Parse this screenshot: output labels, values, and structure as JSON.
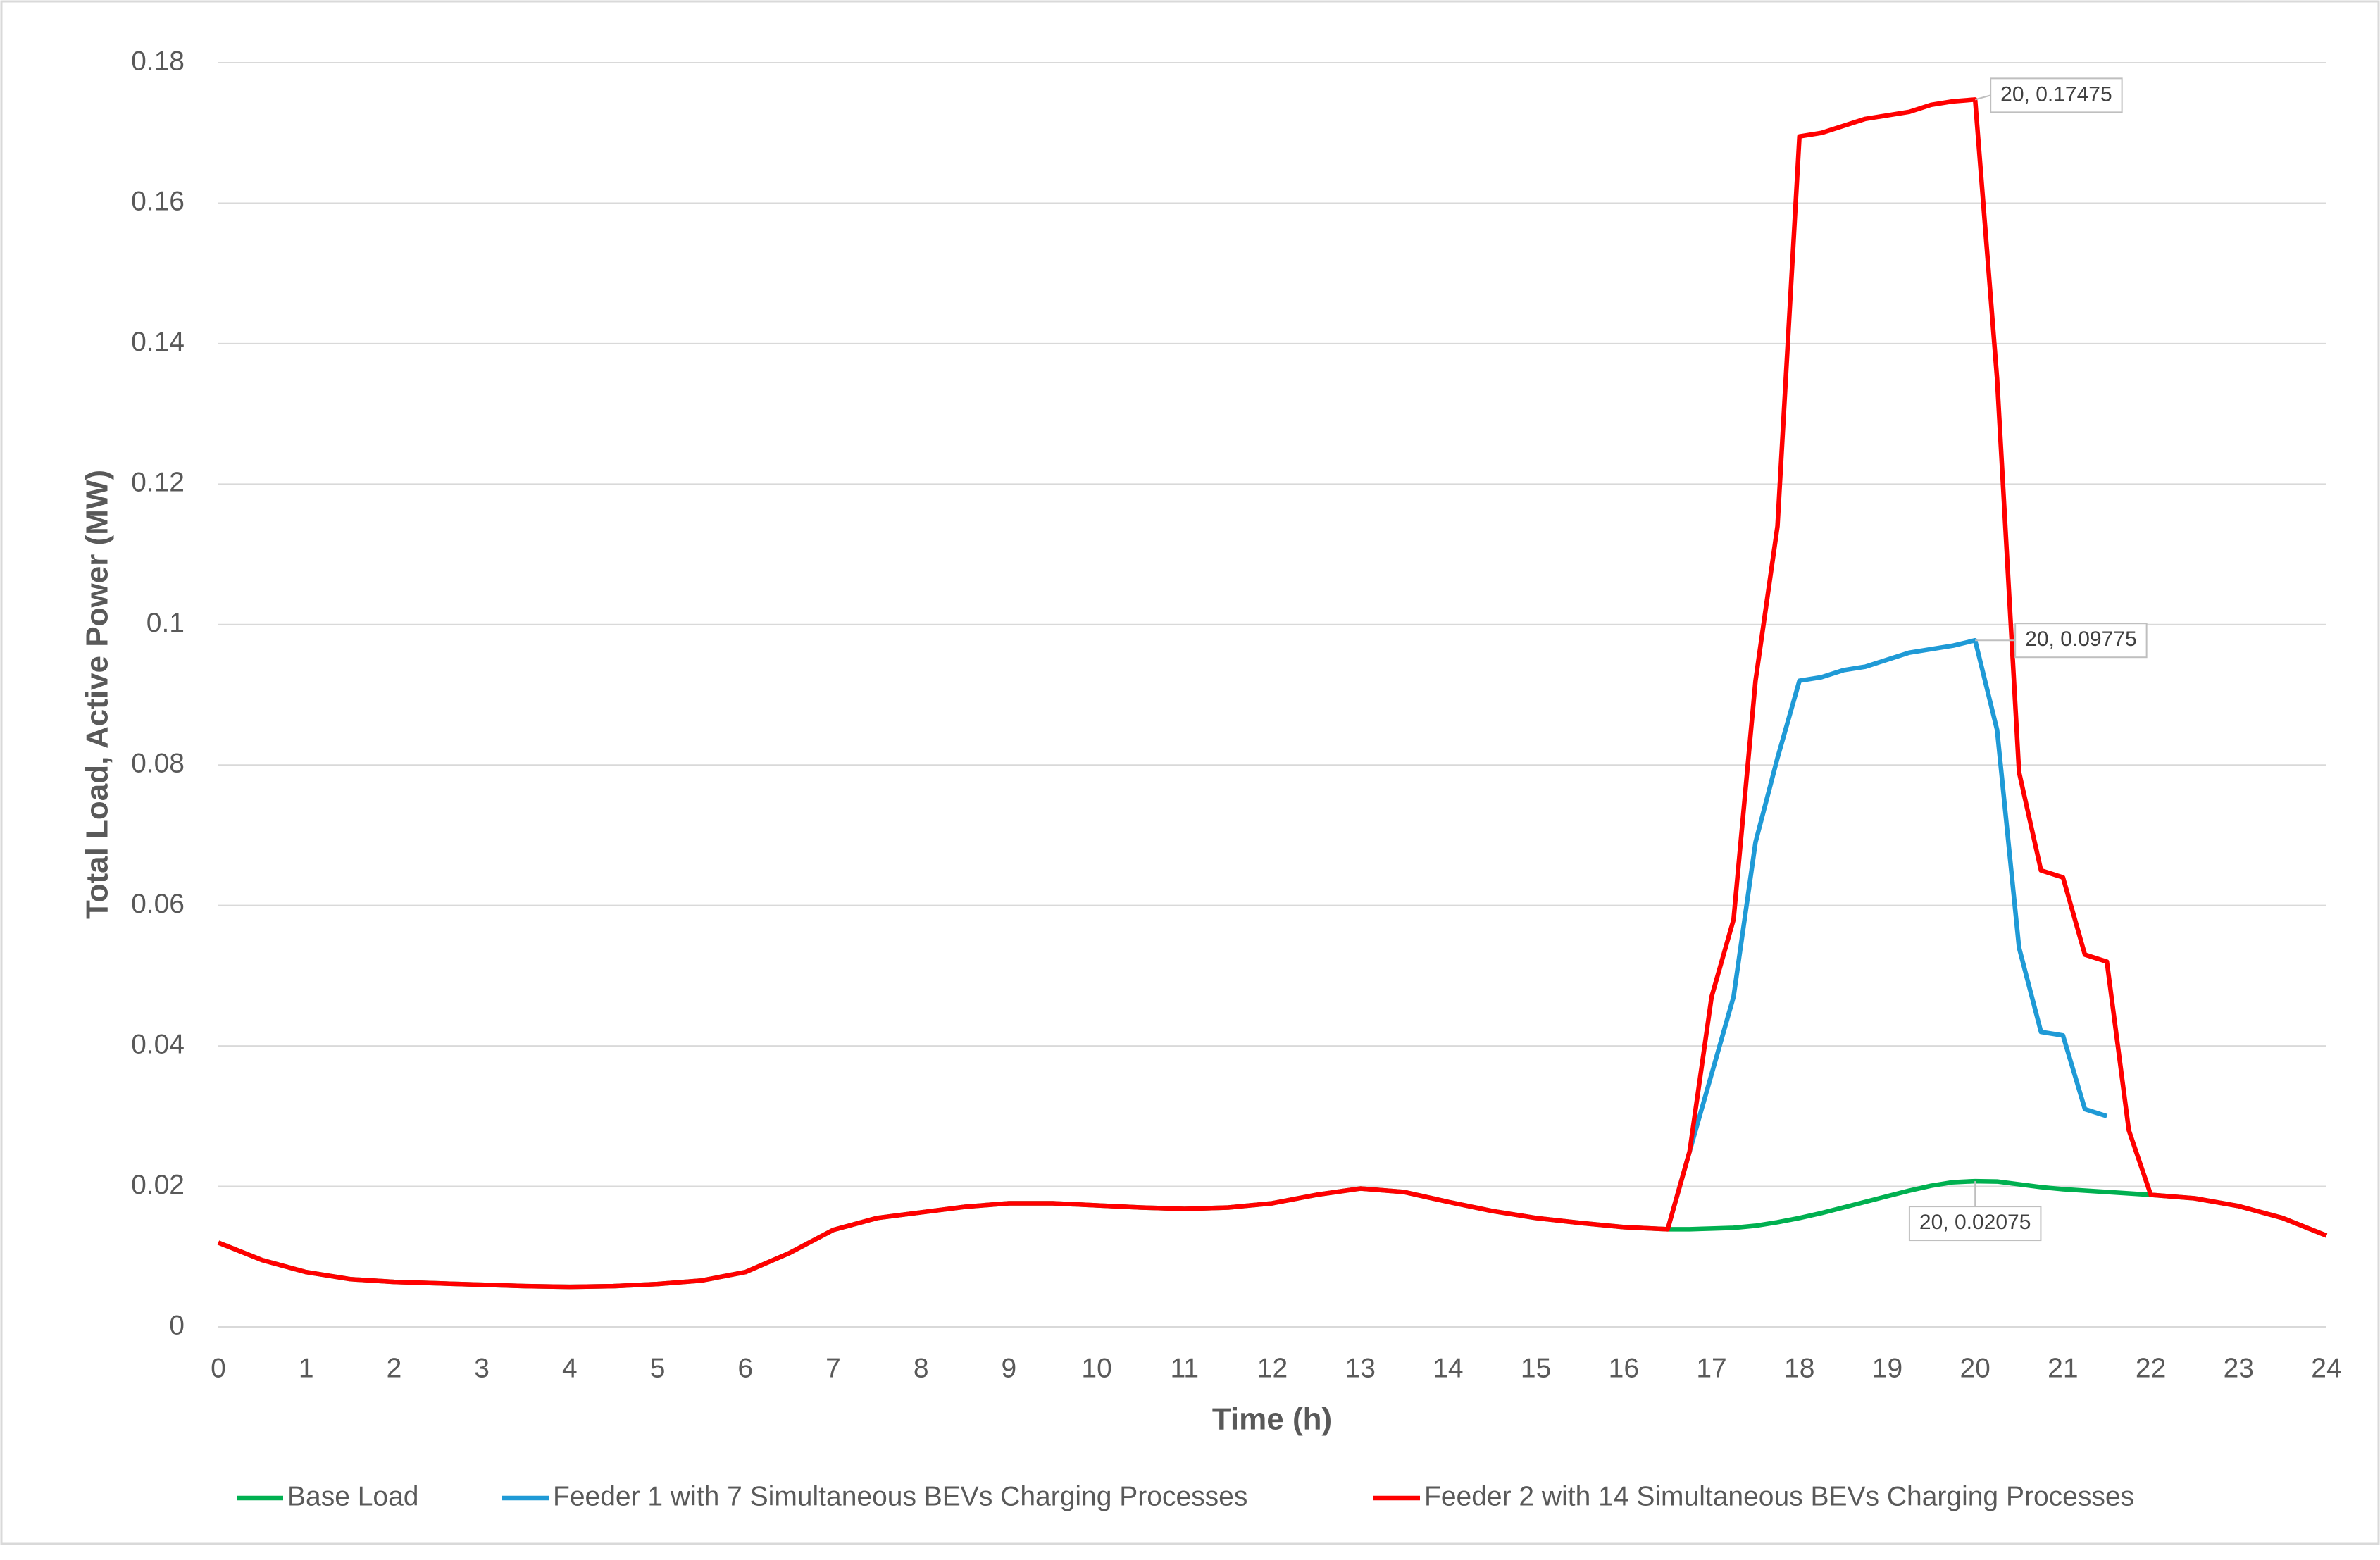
{
  "chart_data": {
    "type": "line",
    "xlabel": "Time (h)",
    "ylabel": "Total Load, Active Power (MW)",
    "x": [
      0,
      0.5,
      1,
      1.5,
      2,
      2.5,
      3,
      3.5,
      4,
      4.5,
      5,
      5.5,
      6,
      6.5,
      7,
      7.5,
      8,
      8.5,
      9,
      9.5,
      10,
      10.5,
      11,
      11.5,
      12,
      12.5,
      13,
      13.5,
      14,
      14.5,
      15,
      15.5,
      16,
      16.5,
      16.75,
      17,
      17.25,
      17.5,
      17.75,
      18,
      18.25,
      18.5,
      18.75,
      19,
      19.25,
      19.5,
      19.75,
      20,
      20.25,
      20.5,
      20.75,
      21,
      21.25,
      21.5,
      21.75,
      22,
      22.5,
      23,
      23.5,
      24
    ],
    "series": [
      {
        "name": "Base Load",
        "color": "#00b050",
        "values": [
          0.012,
          0.0095,
          0.0078,
          0.0068,
          0.0064,
          0.0062,
          0.006,
          0.0058,
          0.0057,
          0.0058,
          0.0061,
          0.0066,
          0.0078,
          0.0105,
          0.0138,
          0.0155,
          0.0163,
          0.0171,
          0.0176,
          0.0176,
          0.0173,
          0.017,
          0.0168,
          0.017,
          0.0176,
          0.0188,
          0.0197,
          0.0192,
          0.0178,
          0.0165,
          0.0155,
          0.0148,
          0.0142,
          0.0139,
          0.0139,
          0.014,
          0.0141,
          0.0144,
          0.0149,
          0.0155,
          0.0162,
          0.017,
          0.0178,
          0.0186,
          0.0194,
          0.0201,
          0.0206,
          0.02075,
          0.0207,
          0.0203,
          0.0199,
          0.0196,
          0.0194,
          0.0192,
          0.019,
          0.0188,
          0.0183,
          0.0172,
          0.0155,
          0.013
        ]
      },
      {
        "name": "Feeder 1 with 7 Simultaneous BEVs Charging Processes",
        "color": "#1f9ad6",
        "values": [
          null,
          null,
          null,
          null,
          null,
          null,
          null,
          null,
          null,
          null,
          null,
          null,
          null,
          null,
          null,
          null,
          null,
          null,
          null,
          null,
          null,
          null,
          null,
          null,
          null,
          null,
          null,
          null,
          null,
          null,
          null,
          null,
          null,
          0.0139,
          0.025,
          0.036,
          0.047,
          0.069,
          0.081,
          0.092,
          0.0925,
          0.0935,
          0.094,
          0.095,
          0.096,
          0.0965,
          0.097,
          0.09775,
          0.085,
          0.054,
          0.042,
          0.0415,
          0.031,
          0.03,
          null,
          null,
          null,
          null,
          null,
          null
        ]
      },
      {
        "name": "Feeder 2 with 14 Simultaneous BEVs Charging Processes",
        "color": "#ff0000",
        "values": [
          0.012,
          0.0095,
          0.0078,
          0.0068,
          0.0064,
          0.0062,
          0.006,
          0.0058,
          0.0057,
          0.0058,
          0.0061,
          0.0066,
          0.0078,
          0.0105,
          0.0138,
          0.0155,
          0.0163,
          0.0171,
          0.0176,
          0.0176,
          0.0173,
          0.017,
          0.0168,
          0.017,
          0.0176,
          0.0188,
          0.0197,
          0.0192,
          0.0178,
          0.0165,
          0.0155,
          0.0148,
          0.0142,
          0.0139,
          0.025,
          0.047,
          0.058,
          0.092,
          0.114,
          0.1695,
          0.17,
          0.171,
          0.172,
          0.1725,
          0.173,
          0.174,
          0.1745,
          0.17475,
          0.135,
          0.079,
          0.065,
          0.064,
          0.053,
          0.052,
          0.028,
          0.0188,
          0.0183,
          0.0172,
          0.0155,
          0.013
        ]
      }
    ],
    "annotations": [
      {
        "text": "20, 0.17475",
        "x": 20,
        "y": 0.17475
      },
      {
        "text": "20, 0.09775",
        "x": 20,
        "y": 0.09775
      },
      {
        "text": "20, 0.02075",
        "x": 20,
        "y": 0.02075
      }
    ],
    "xlim": [
      0,
      24
    ],
    "xticks": [
      0,
      1,
      2,
      3,
      4,
      5,
      6,
      7,
      8,
      9,
      10,
      11,
      12,
      13,
      14,
      15,
      16,
      17,
      18,
      19,
      20,
      21,
      22,
      23,
      24
    ],
    "ylim": [
      0,
      0.18
    ],
    "yticks": [
      0,
      0.02,
      0.04,
      0.06,
      0.08,
      0.1,
      0.12,
      0.14,
      0.16,
      0.18
    ],
    "grid": true,
    "legend": "bottom"
  }
}
